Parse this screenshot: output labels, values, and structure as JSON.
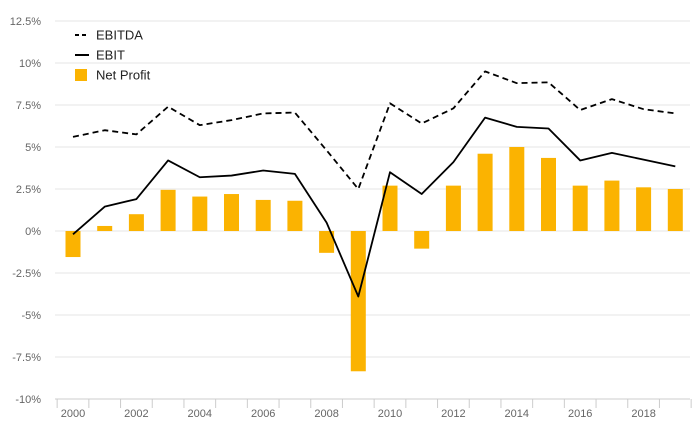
{
  "chart_data": {
    "type": "bar",
    "title": "",
    "xlabel": "",
    "ylabel": "",
    "x": [
      2000,
      2001,
      2002,
      2003,
      2004,
      2005,
      2006,
      2007,
      2008,
      2009,
      2010,
      2011,
      2012,
      2013,
      2014,
      2015,
      2016,
      2017,
      2018,
      2019
    ],
    "x_tick_labels": [
      "2000",
      "2002",
      "2004",
      "2006",
      "2008",
      "2010",
      "2012",
      "2014",
      "2016",
      "2018"
    ],
    "y_tick_labels": [
      "12.5%",
      "10%",
      "7.5%",
      "5%",
      "2.5%",
      "0%",
      "-2.5%",
      "-5%",
      "-7.5%",
      "-10%"
    ],
    "ylim": [
      -10,
      12.5
    ],
    "grid": true,
    "legend_position": "top-left",
    "series": [
      {
        "name": "EBITDA",
        "kind": "line",
        "style": "dashed",
        "color": "#000000",
        "values": [
          5.6,
          6.0,
          5.75,
          7.4,
          6.3,
          6.6,
          7.0,
          7.05,
          4.8,
          2.5,
          7.6,
          6.4,
          7.3,
          9.5,
          8.8,
          8.85,
          7.2,
          7.85,
          7.25,
          7.0
        ]
      },
      {
        "name": "EBIT",
        "kind": "line",
        "style": "solid",
        "color": "#000000",
        "values": [
          -0.2,
          1.45,
          1.9,
          4.2,
          3.2,
          3.3,
          3.6,
          3.4,
          0.5,
          -3.9,
          3.5,
          2.2,
          4.1,
          6.75,
          6.2,
          6.1,
          4.2,
          4.65,
          4.25,
          3.85
        ]
      },
      {
        "name": "Net Profit",
        "kind": "bar",
        "color": "#FBB301",
        "values": [
          -1.55,
          0.3,
          1.0,
          2.45,
          2.05,
          2.2,
          1.85,
          1.8,
          -1.3,
          -8.35,
          2.7,
          -1.05,
          2.7,
          4.6,
          5.0,
          4.35,
          2.7,
          3.0,
          2.6,
          2.5
        ]
      }
    ]
  }
}
